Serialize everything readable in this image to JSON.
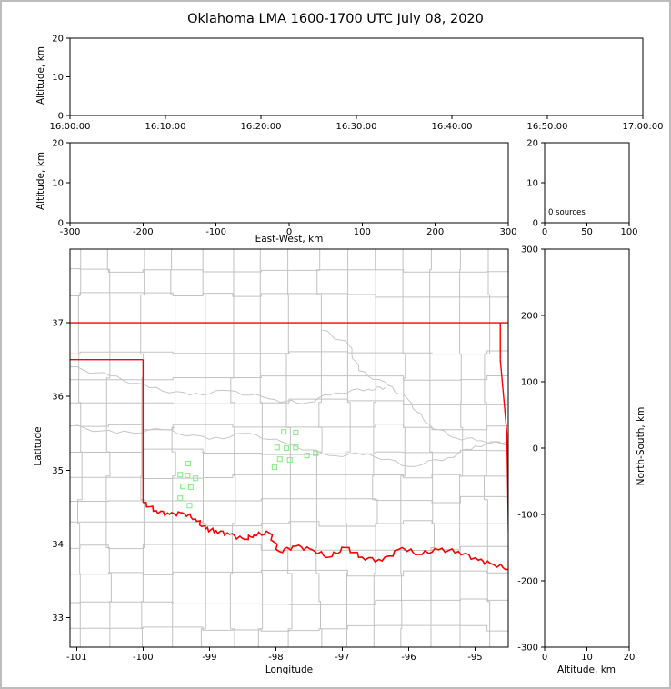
{
  "chart_data": {
    "type": "scatter",
    "title": "Oklahoma LMA 1600-1700 UTC July 08, 2020",
    "panels": {
      "time_altitude": {
        "ylabel": "Altitude, km",
        "ylim": [
          0,
          20
        ],
        "yticks": [
          0,
          10,
          20
        ],
        "xtick_labels": [
          "16:00:00",
          "16:10:00",
          "16:20:00",
          "16:30:00",
          "16:40:00",
          "16:50:00",
          "17:00:00"
        ],
        "points": []
      },
      "east_west_altitude": {
        "xlabel": "East-West, km",
        "xlim": [
          -300,
          300
        ],
        "xticks": [
          -300,
          -200,
          -100,
          0,
          100,
          200,
          300
        ],
        "ylabel": "Altitude, km",
        "ylim": [
          0,
          20
        ],
        "yticks": [
          0,
          10,
          20
        ],
        "points": []
      },
      "source_histogram": {
        "annotation": "0 sources",
        "xlim": [
          0,
          100
        ],
        "xticks": [
          0,
          50,
          100
        ],
        "ylim": [
          0,
          20
        ],
        "yticks": [
          0,
          10,
          20
        ],
        "bars": []
      },
      "plan_view": {
        "xlabel": "Longitude",
        "ylabel": "Latitude",
        "xlim": [
          -101.1,
          -94.5
        ],
        "xticks": [
          -101,
          -100,
          -99,
          -98,
          -97,
          -96,
          -95
        ],
        "ylim": [
          32.6,
          38.0
        ],
        "yticks": [
          33,
          34,
          35,
          36,
          37
        ],
        "colors": {
          "county": "#c2c2c2",
          "state_border": "#ff0000",
          "red_river": "#ff0000",
          "gray_river": "#c6c6c6",
          "station": "#90ee90"
        },
        "stations": [
          [
            -97.88,
            35.52
          ],
          [
            -97.7,
            35.51
          ],
          [
            -97.98,
            35.31
          ],
          [
            -97.84,
            35.3
          ],
          [
            -97.7,
            35.31
          ],
          [
            -97.94,
            35.15
          ],
          [
            -97.79,
            35.14
          ],
          [
            -98.02,
            35.04
          ],
          [
            -97.53,
            35.2
          ],
          [
            -97.4,
            35.23
          ],
          [
            -99.32,
            35.09
          ],
          [
            -99.44,
            34.94
          ],
          [
            -99.33,
            34.93
          ],
          [
            -99.21,
            34.89
          ],
          [
            -99.4,
            34.78
          ],
          [
            -99.28,
            34.77
          ],
          [
            -99.44,
            34.62
          ],
          [
            -99.3,
            34.52
          ]
        ],
        "state_border": {
          "kansas_lat": 37.0,
          "panhandle_lat": 36.5,
          "texas_lon": -100.0,
          "missouri_lon": -94.62,
          "arkansas_line": [
            [
              -94.62,
              36.5
            ],
            [
              -94.52,
              35.5
            ],
            [
              -94.49,
              33.72
            ]
          ]
        },
        "red_river": [
          [
            -100.0,
            34.56
          ],
          [
            -99.8,
            34.45
          ],
          [
            -99.6,
            34.4
          ],
          [
            -99.4,
            34.42
          ],
          [
            -99.21,
            34.34
          ],
          [
            -99.06,
            34.2
          ],
          [
            -98.9,
            34.18
          ],
          [
            -98.7,
            34.13
          ],
          [
            -98.47,
            34.06
          ],
          [
            -98.33,
            34.12
          ],
          [
            -98.1,
            34.15
          ],
          [
            -97.95,
            33.9
          ],
          [
            -97.7,
            33.97
          ],
          [
            -97.45,
            33.92
          ],
          [
            -97.2,
            33.82
          ],
          [
            -96.95,
            33.95
          ],
          [
            -96.7,
            33.82
          ],
          [
            -96.4,
            33.77
          ],
          [
            -96.1,
            33.95
          ],
          [
            -95.85,
            33.86
          ],
          [
            -95.55,
            33.92
          ],
          [
            -95.25,
            33.9
          ],
          [
            -94.95,
            33.78
          ],
          [
            -94.75,
            33.73
          ],
          [
            -94.49,
            33.66
          ]
        ],
        "gray_rivers": [
          [
            [
              -101.1,
              35.6
            ],
            [
              -100.4,
              35.5
            ],
            [
              -99.7,
              35.55
            ],
            [
              -99.0,
              35.42
            ],
            [
              -98.4,
              35.5
            ],
            [
              -97.8,
              35.35
            ],
            [
              -97.2,
              35.2
            ],
            [
              -96.6,
              35.22
            ],
            [
              -96.0,
              35.05
            ],
            [
              -95.4,
              35.17
            ],
            [
              -95.0,
              35.33
            ],
            [
              -94.5,
              35.4
            ]
          ],
          [
            [
              -101.1,
              36.4
            ],
            [
              -100.5,
              36.28
            ],
            [
              -99.9,
              36.12
            ],
            [
              -99.3,
              36.02
            ],
            [
              -98.7,
              36.08
            ],
            [
              -98.1,
              35.97
            ],
            [
              -97.6,
              35.9
            ],
            [
              -97.1,
              36.05
            ],
            [
              -96.6,
              36.1
            ],
            [
              -96.35,
              36.12
            ]
          ],
          [
            [
              -97.3,
              36.9
            ],
            [
              -96.9,
              36.7
            ],
            [
              -96.75,
              36.35
            ],
            [
              -96.3,
              36.15
            ],
            [
              -96.0,
              35.95
            ],
            [
              -95.75,
              35.65
            ],
            [
              -95.35,
              35.45
            ],
            [
              -94.9,
              35.4
            ],
            [
              -94.5,
              35.35
            ]
          ]
        ],
        "county_lat_rows": [
          32.85,
          33.22,
          33.6,
          33.95,
          34.28,
          34.6,
          34.92,
          35.25,
          35.58,
          35.92,
          36.25,
          36.58,
          37.38,
          37.72
        ],
        "county_lon_cols": [
          -100.95,
          -100.52,
          -100.0,
          -99.55,
          -99.1,
          -98.65,
          -98.22,
          -97.8,
          -97.35,
          -96.92,
          -96.5,
          -96.08,
          -95.65,
          -95.22,
          -94.82
        ]
      },
      "north_south_altitude": {
        "xlabel": "Altitude, km",
        "xlim": [
          0,
          20
        ],
        "xticks": [
          0,
          10,
          20
        ],
        "ylabel": "North-South, km",
        "ylim": [
          -300,
          300
        ],
        "yticks": [
          -300,
          -200,
          -100,
          0,
          100,
          200,
          300
        ],
        "points": []
      }
    }
  }
}
